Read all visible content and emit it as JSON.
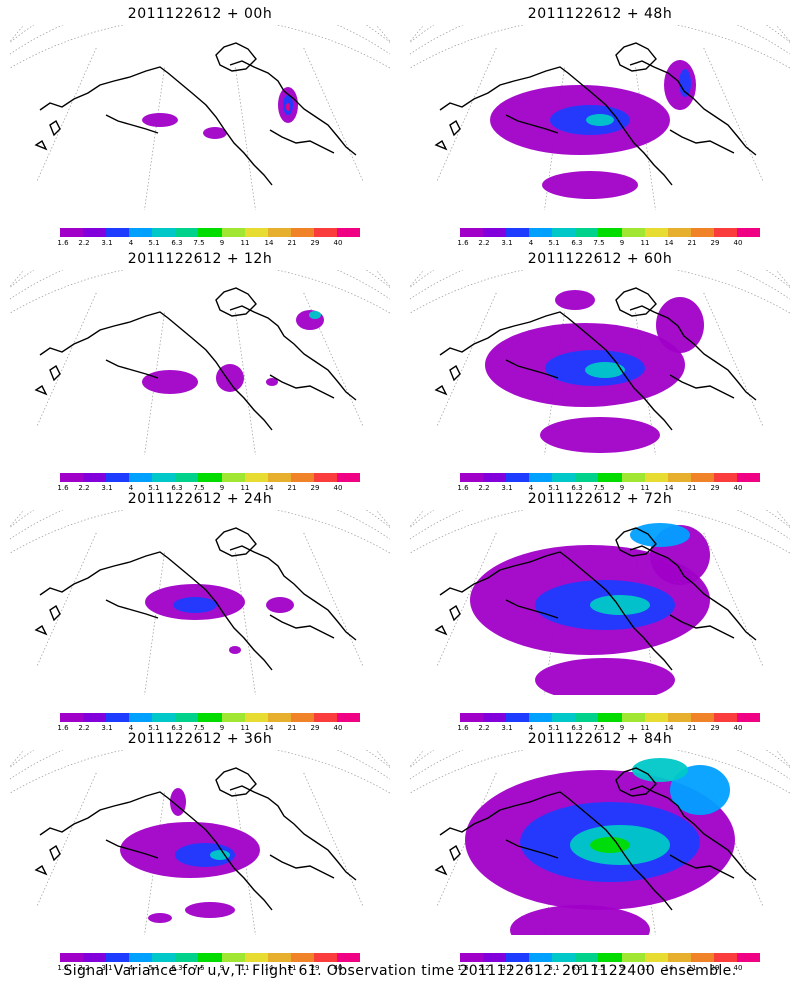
{
  "panels": [
    {
      "title": "2011122612 + 00h",
      "lead": 0
    },
    {
      "title": "2011122612 + 48h",
      "lead": 48
    },
    {
      "title": "2011122612 + 12h",
      "lead": 12
    },
    {
      "title": "2011122612 + 60h",
      "lead": 60
    },
    {
      "title": "2011122612 + 24h",
      "lead": 24
    },
    {
      "title": "2011122612 + 72h",
      "lead": 72
    },
    {
      "title": "2011122612 + 36h",
      "lead": 36
    },
    {
      "title": "2011122612 + 84h",
      "lead": 84
    }
  ],
  "colorbar": {
    "ticks": [
      "1.6",
      "2.2",
      "3.1",
      "4",
      "5.1",
      "6.3",
      "7.5",
      "9",
      "11",
      "14",
      "21",
      "29",
      "40"
    ],
    "colors": [
      "#a000c8",
      "#8200dc",
      "#1e3cff",
      "#00a0ff",
      "#00c8c8",
      "#00d28c",
      "#00dc00",
      "#a0e632",
      "#e6dc32",
      "#e6af2d",
      "#f08228",
      "#fa3c3c",
      "#f00082"
    ]
  },
  "footer": "Signal Variance for u,v,T. Flight 61. Observation time 2011122612. 2011122400 ensemble."
}
